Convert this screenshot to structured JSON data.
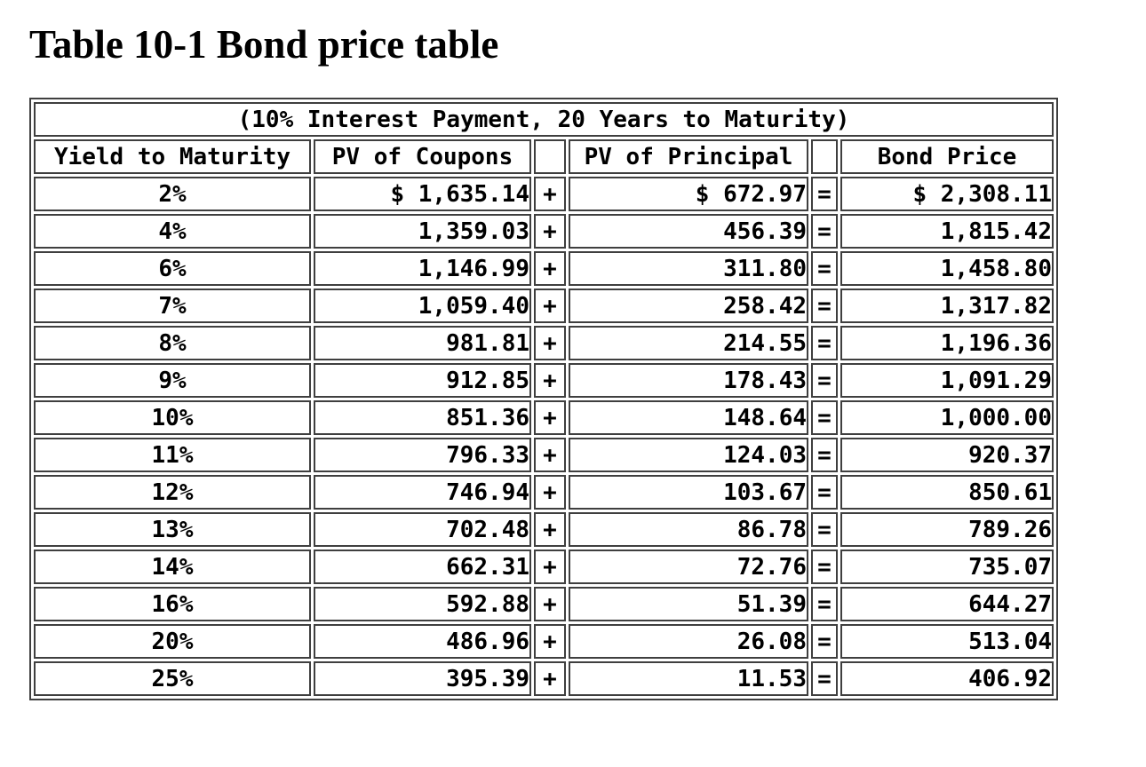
{
  "title": "Table 10-1 Bond price table",
  "table": {
    "caption": "(10% Interest Payment, 20 Years to Maturity)",
    "columns": {
      "yield": "Yield to Maturity",
      "coupons": "PV of Coupons",
      "principal": "PV of Principal",
      "price": "Bond Price"
    },
    "operators": {
      "plus": "+",
      "equals": "="
    },
    "rows": [
      {
        "yield": "2%",
        "coupons": "$ 1,635.14",
        "principal": "$ 672.97",
        "price": "$ 2,308.11"
      },
      {
        "yield": "4%",
        "coupons": "1,359.03",
        "principal": "456.39",
        "price": "1,815.42"
      },
      {
        "yield": "6%",
        "coupons": "1,146.99",
        "principal": "311.80",
        "price": "1,458.80"
      },
      {
        "yield": "7%",
        "coupons": "1,059.40",
        "principal": "258.42",
        "price": "1,317.82"
      },
      {
        "yield": "8%",
        "coupons": "981.81",
        "principal": "214.55",
        "price": "1,196.36"
      },
      {
        "yield": "9%",
        "coupons": "912.85",
        "principal": "178.43",
        "price": "1,091.29"
      },
      {
        "yield": "10%",
        "coupons": "851.36",
        "principal": "148.64",
        "price": "1,000.00"
      },
      {
        "yield": "11%",
        "coupons": "796.33",
        "principal": "124.03",
        "price": "920.37"
      },
      {
        "yield": "12%",
        "coupons": "746.94",
        "principal": "103.67",
        "price": "850.61"
      },
      {
        "yield": "13%",
        "coupons": "702.48",
        "principal": "86.78",
        "price": "789.26"
      },
      {
        "yield": "14%",
        "coupons": "662.31",
        "principal": "72.76",
        "price": "735.07"
      },
      {
        "yield": "16%",
        "coupons": "592.88",
        "principal": "51.39",
        "price": "644.27"
      },
      {
        "yield": "20%",
        "coupons": "486.96",
        "principal": "26.08",
        "price": "513.04"
      },
      {
        "yield": "25%",
        "coupons": "395.39",
        "principal": "11.53",
        "price": "406.92"
      }
    ],
    "colors": {
      "border": "#3f3f3f",
      "text": "#000000",
      "background": "#ffffff"
    }
  }
}
